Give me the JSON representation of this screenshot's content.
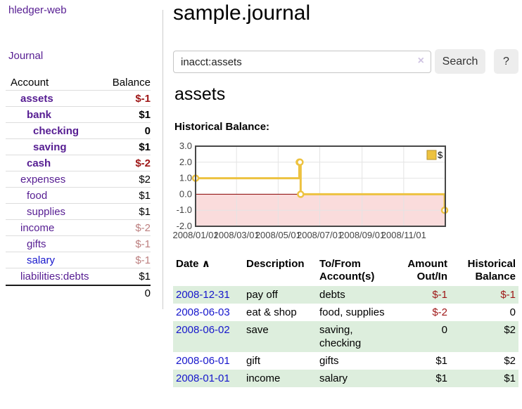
{
  "app": {
    "brand": "hledger-web",
    "nav_journal": "Journal"
  },
  "sidebar": {
    "header": {
      "account": "Account",
      "balance": "Balance"
    },
    "rows": [
      {
        "name": "assets",
        "balance": "$-1"
      },
      {
        "name": "bank",
        "balance": "$1"
      },
      {
        "name": "checking",
        "balance": "0"
      },
      {
        "name": "saving",
        "balance": "$1"
      },
      {
        "name": "cash",
        "balance": "$-2"
      },
      {
        "name": "expenses",
        "balance": "$2"
      },
      {
        "name": "food",
        "balance": "$1"
      },
      {
        "name": "supplies",
        "balance": "$1"
      },
      {
        "name": "income",
        "balance": "$-2"
      },
      {
        "name": "gifts",
        "balance": "$-1"
      },
      {
        "name": "salary",
        "balance": "$-1"
      },
      {
        "name": "liabilities:debts",
        "balance": "$1"
      }
    ],
    "total": "0"
  },
  "header": {
    "title": "sample.journal"
  },
  "search": {
    "query": "inacct:assets",
    "clear_icon": "×",
    "button": "Search",
    "help": "?"
  },
  "main": {
    "account_title": "assets",
    "chart_label": "Historical Balance:"
  },
  "chart_data": {
    "type": "line",
    "title": "Historical Balance",
    "step": true,
    "series": [
      {
        "name": "$",
        "color": "#edc240",
        "points": [
          [
            "2008-01-01",
            1
          ],
          [
            "2008-06-01",
            2
          ],
          [
            "2008-06-02",
            2
          ],
          [
            "2008-06-03",
            0
          ],
          [
            "2008-12-31",
            -1
          ]
        ]
      }
    ],
    "x_ticks": [
      "2008/01/01",
      "2008/03/01",
      "2008/05/01",
      "2008/07/01",
      "2008/09/01",
      "2008/11/01"
    ],
    "y_ticks": [
      3.0,
      2.0,
      1.0,
      0.0,
      -1.0,
      -2.0
    ],
    "ylim": [
      -2,
      3
    ],
    "legend": [
      "$"
    ],
    "legend_position": "top-right",
    "grid": true,
    "negative_region_color": "#fadcdc",
    "zero_line_color": "#8b0000"
  },
  "table": {
    "sort_icon": "∧",
    "headers": [
      "Date",
      "Description",
      "To/From Account(s)",
      "Amount Out/In",
      "Historical Balance"
    ],
    "rows": [
      {
        "date": "2008-12-31",
        "description": "pay off",
        "accounts": "debts",
        "amount": "$-1",
        "balance": "$-1"
      },
      {
        "date": "2008-06-03",
        "description": "eat & shop",
        "accounts": "food, supplies",
        "amount": "$-2",
        "balance": "0"
      },
      {
        "date": "2008-06-02",
        "description": "save",
        "accounts": "saving, checking",
        "amount": "0",
        "balance": "$2"
      },
      {
        "date": "2008-06-01",
        "description": "gift",
        "accounts": "gifts",
        "amount": "$1",
        "balance": "$2"
      },
      {
        "date": "2008-01-01",
        "description": "income",
        "accounts": "salary",
        "amount": "$1",
        "balance": "$1"
      }
    ]
  }
}
